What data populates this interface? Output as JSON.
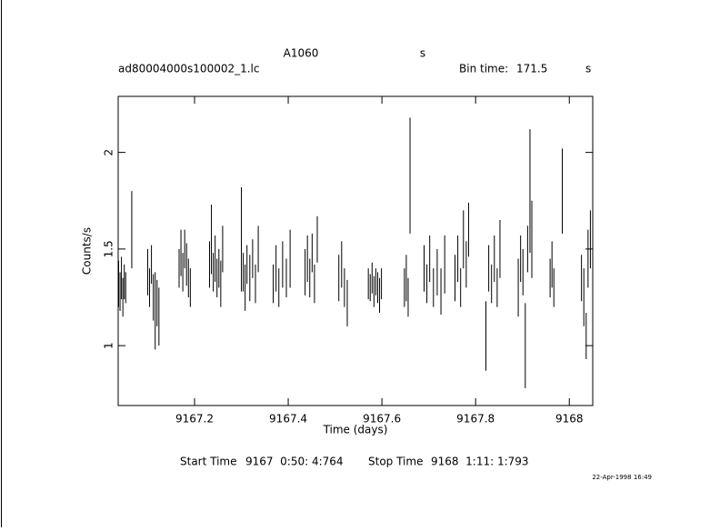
{
  "header": {
    "object": "A1060",
    "unit": "s",
    "file": "ad80004000s100002_1.lc",
    "bin_label": "Bin time:",
    "bin_value": 171.5,
    "bin_unit": "s"
  },
  "footer": {
    "start_label": "Start Time",
    "start_value": "9167  0:50: 4:764",
    "stop_label": "Stop Time",
    "stop_value": "9168  1:11: 1:793",
    "date": "22-Apr-1998 16:49"
  },
  "chart_data": {
    "type": "errorbar",
    "xlabel": "Time (days)",
    "ylabel": "Counts/s",
    "color": "#000000",
    "xlim": [
      9167.037,
      9168.05
    ],
    "xticks": [
      9167.2,
      9167.4,
      9167.6,
      9167.8,
      9168
    ],
    "ylim": [
      0.69,
      2.29
    ],
    "yticks": [
      1,
      1.5,
      2
    ],
    "x": [
      9167.038,
      9167.041,
      9167.044,
      9167.047,
      9167.05,
      9167.053,
      9167.066,
      9167.1,
      9167.104,
      9167.108,
      9167.112,
      9167.116,
      9167.12,
      9167.124,
      9167.167,
      9167.171,
      9167.175,
      9167.179,
      9167.183,
      9167.187,
      9167.191,
      9167.232,
      9167.236,
      9167.24,
      9167.244,
      9167.248,
      9167.252,
      9167.256,
      9167.26,
      9167.3,
      9167.304,
      9167.308,
      9167.312,
      9167.318,
      9167.324,
      9167.33,
      9167.336,
      9167.368,
      9167.374,
      9167.38,
      9167.388,
      9167.396,
      9167.404,
      9167.436,
      9167.441,
      9167.446,
      9167.451,
      9167.456,
      9167.462,
      9167.508,
      9167.514,
      9167.52,
      9167.526,
      9167.571,
      9167.575,
      9167.579,
      9167.583,
      9167.587,
      9167.591,
      9167.595,
      9167.599,
      9167.648,
      9167.652,
      9167.656,
      9167.66,
      9167.69,
      9167.696,
      9167.702,
      9167.71,
      9167.718,
      9167.726,
      9167.734,
      9167.756,
      9167.762,
      9167.768,
      9167.774,
      9167.78,
      9167.785,
      9167.822,
      9167.828,
      9167.834,
      9167.84,
      9167.846,
      9167.852,
      9167.891,
      9167.896,
      9167.901,
      9167.906,
      9167.911,
      9167.916,
      9167.92,
      9167.959,
      9167.963,
      9167.967,
      9167.985,
      9168.026,
      9168.031,
      9168.036,
      9168.04,
      9168.045
    ],
    "values": [
      1.32,
      1.28,
      1.35,
      1.25,
      1.33,
      1.3,
      1.6,
      1.38,
      1.3,
      1.42,
      1.25,
      1.18,
      1.22,
      1.15,
      1.4,
      1.48,
      1.38,
      1.5,
      1.42,
      1.35,
      1.3,
      1.42,
      1.55,
      1.38,
      1.45,
      1.35,
      1.4,
      1.32,
      1.5,
      1.55,
      1.38,
      1.3,
      1.42,
      1.35,
      1.45,
      1.32,
      1.5,
      1.32,
      1.4,
      1.3,
      1.42,
      1.35,
      1.45,
      1.38,
      1.45,
      1.35,
      1.48,
      1.32,
      1.55,
      1.35,
      1.42,
      1.3,
      1.22,
      1.32,
      1.3,
      1.35,
      1.28,
      1.33,
      1.3,
      1.26,
      1.32,
      1.3,
      1.35,
      1.25,
      1.88,
      1.4,
      1.32,
      1.45,
      1.3,
      1.38,
      1.28,
      1.42,
      1.35,
      1.45,
      1.3,
      1.55,
      1.42,
      1.6,
      1.05,
      1.4,
      1.32,
      1.45,
      1.3,
      1.5,
      1.3,
      1.45,
      1.38,
      1.0,
      1.5,
      1.8,
      1.55,
      1.35,
      1.42,
      1.3,
      1.8,
      1.35,
      1.25,
      1.05,
      1.45,
      1.55
    ],
    "errors": [
      0.12,
      0.1,
      0.11,
      0.1,
      0.09,
      0.08,
      0.2,
      0.12,
      0.1,
      0.1,
      0.12,
      0.2,
      0.12,
      0.15,
      0.1,
      0.12,
      0.1,
      0.1,
      0.11,
      0.1,
      0.1,
      0.12,
      0.18,
      0.1,
      0.12,
      0.1,
      0.1,
      0.12,
      0.12,
      0.27,
      0.1,
      0.12,
      0.1,
      0.12,
      0.1,
      0.1,
      0.12,
      0.1,
      0.12,
      0.1,
      0.12,
      0.1,
      0.15,
      0.12,
      0.12,
      0.1,
      0.1,
      0.1,
      0.12,
      0.12,
      0.12,
      0.1,
      0.12,
      0.08,
      0.07,
      0.08,
      0.08,
      0.07,
      0.08,
      0.09,
      0.08,
      0.1,
      0.12,
      0.1,
      0.3,
      0.12,
      0.1,
      0.12,
      0.1,
      0.12,
      0.12,
      0.15,
      0.12,
      0.12,
      0.1,
      0.15,
      0.12,
      0.14,
      0.18,
      0.12,
      0.1,
      0.12,
      0.1,
      0.15,
      0.15,
      0.12,
      0.12,
      0.22,
      0.12,
      0.32,
      0.2,
      0.1,
      0.12,
      0.1,
      0.22,
      0.12,
      0.15,
      0.12,
      0.15,
      0.15
    ]
  }
}
